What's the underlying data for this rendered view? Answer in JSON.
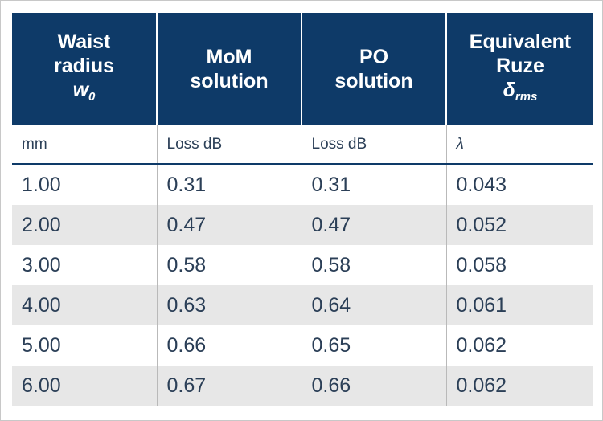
{
  "table": {
    "headers": [
      {
        "lines": [
          "Waist",
          "radius"
        ],
        "symbol": "w",
        "subscript": "0"
      },
      {
        "lines": [
          "MoM",
          "solution"
        ],
        "symbol": "",
        "subscript": ""
      },
      {
        "lines": [
          "PO",
          "solution"
        ],
        "symbol": "",
        "subscript": ""
      },
      {
        "lines": [
          "Equivalent",
          "Ruze"
        ],
        "symbol": "δ",
        "subscript": "rms"
      }
    ],
    "units": [
      "mm",
      "Loss dB",
      "Loss dB",
      "λ"
    ],
    "rows": [
      [
        "1.00",
        "0.31",
        "0.31",
        "0.043"
      ],
      [
        "2.00",
        "0.47",
        "0.47",
        "0.052"
      ],
      [
        "3.00",
        "0.58",
        "0.58",
        "0.058"
      ],
      [
        "4.00",
        "0.63",
        "0.64",
        "0.061"
      ],
      [
        "5.00",
        "0.66",
        "0.65",
        "0.062"
      ],
      [
        "6.00",
        "0.67",
        "0.66",
        "0.062"
      ]
    ]
  }
}
